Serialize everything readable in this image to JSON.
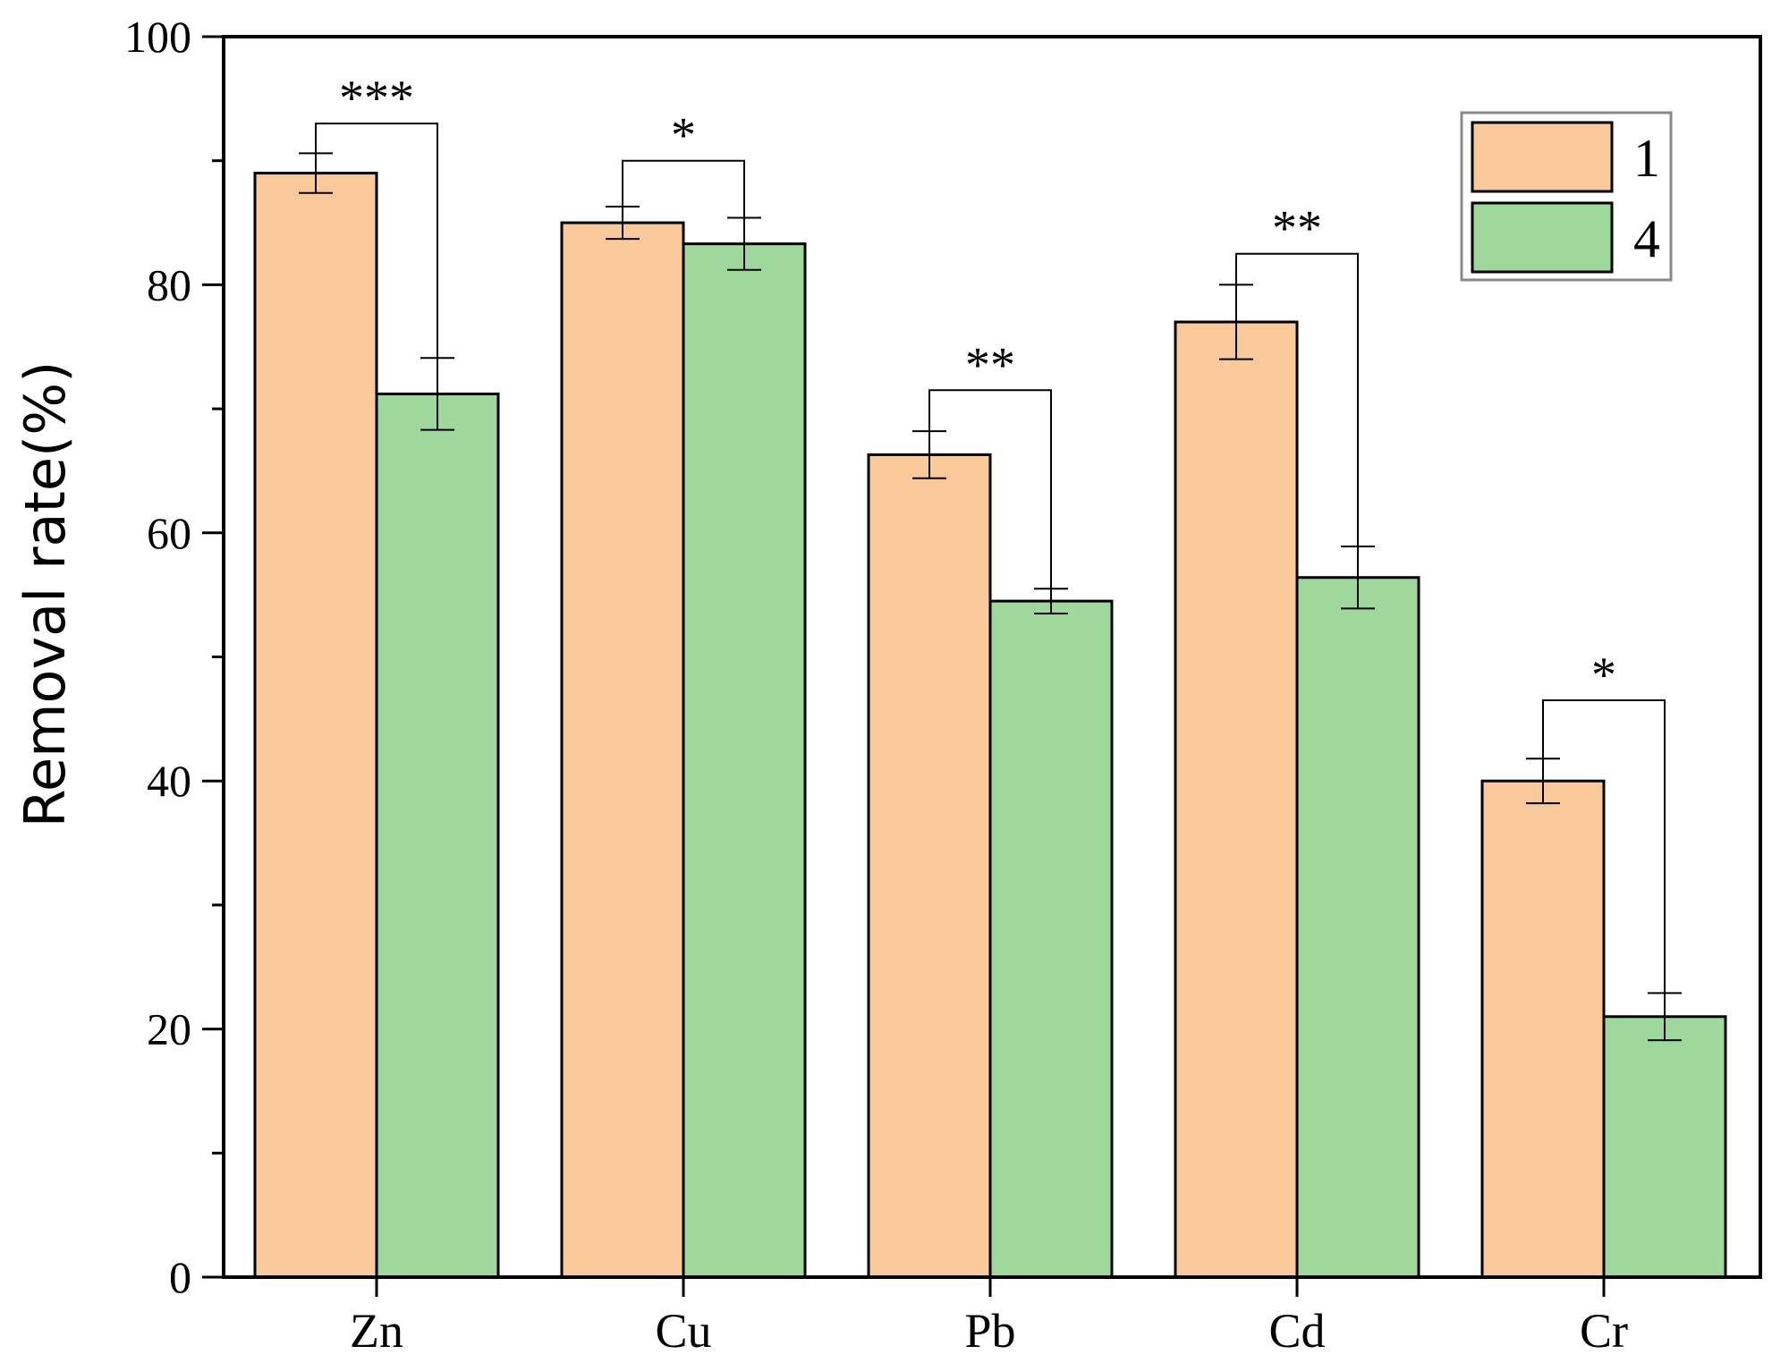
{
  "chart_data": {
    "type": "bar",
    "categories": [
      "Zn",
      "Cu",
      "Pb",
      "Cd",
      "Cr"
    ],
    "series": [
      {
        "name": "1",
        "color": "#f9c89b",
        "values": [
          89.0,
          85.0,
          66.3,
          77.0,
          40.0
        ],
        "errors": [
          1.6,
          1.3,
          1.9,
          3.0,
          1.8
        ]
      },
      {
        "name": "4",
        "color": "#9fd89c",
        "values": [
          71.2,
          83.3,
          54.5,
          56.4,
          21.0
        ],
        "errors": [
          2.9,
          2.1,
          1.0,
          2.5,
          1.9
        ]
      }
    ],
    "significance": [
      {
        "category": "Zn",
        "label": "***",
        "bracket_y": 93.0
      },
      {
        "category": "Cu",
        "label": "*",
        "bracket_y": 90.0
      },
      {
        "category": "Pb",
        "label": "**",
        "bracket_y": 71.5
      },
      {
        "category": "Cd",
        "label": "**",
        "bracket_y": 82.5
      },
      {
        "category": "Cr",
        "label": "*",
        "bracket_y": 46.5
      }
    ],
    "ylabel": "Removal rate(%)",
    "xlabel": "",
    "ylim": [
      0,
      100
    ],
    "yticks": [
      0,
      20,
      40,
      60,
      80,
      100
    ],
    "legend_position": "top-right",
    "grid": false
  }
}
